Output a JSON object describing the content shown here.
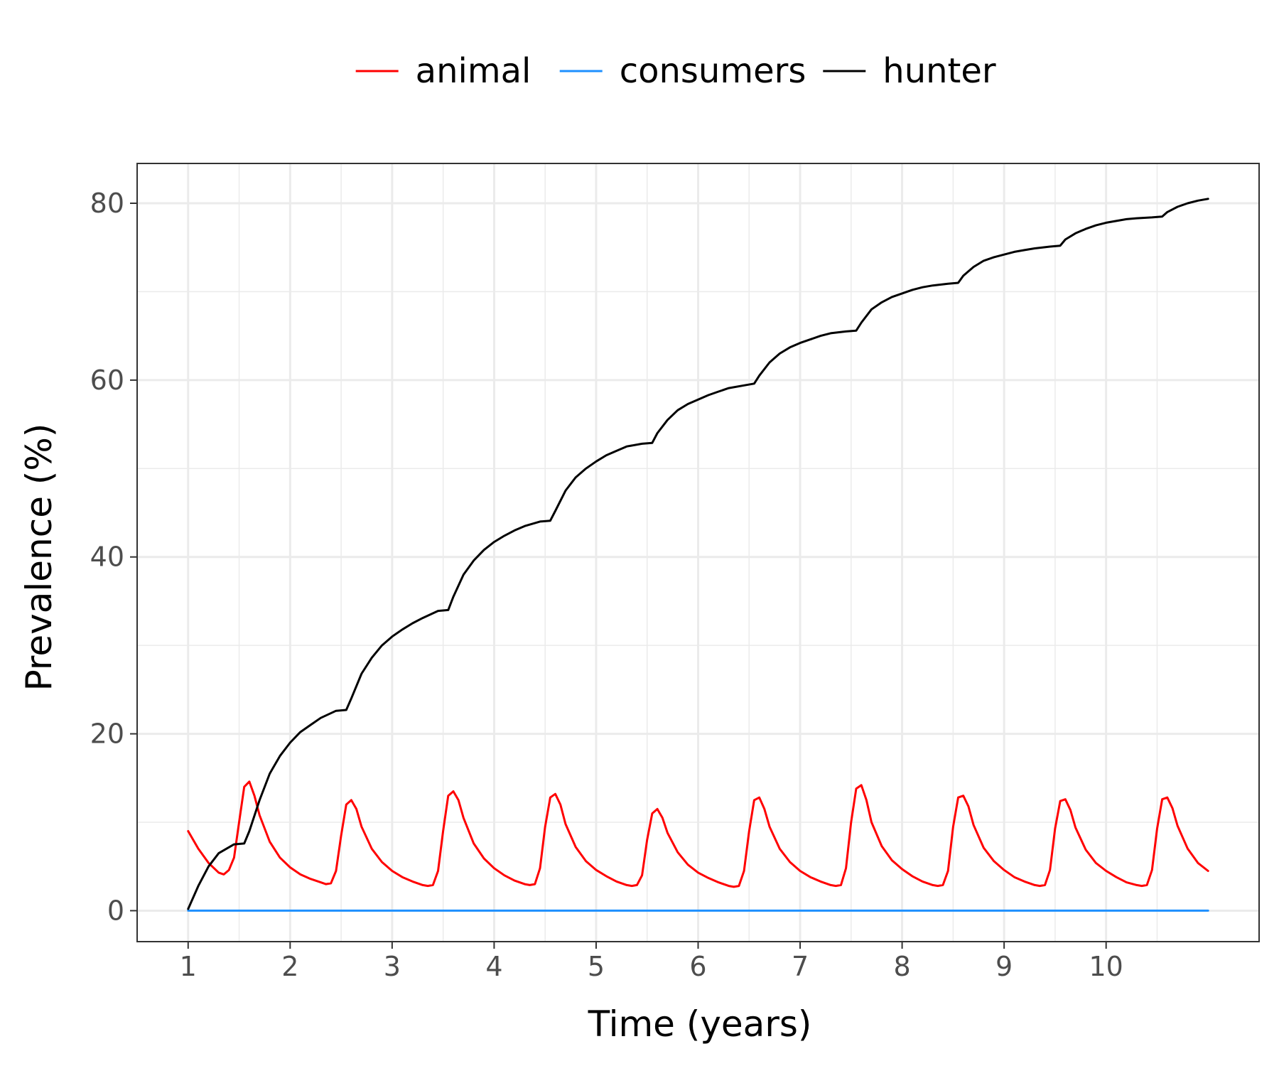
{
  "chart_data": {
    "type": "line",
    "title": "",
    "xlabel": "Time (years)",
    "ylabel": "Prevalence (%)",
    "xlim": [
      0.5,
      11.5
    ],
    "ylim": [
      -3.5,
      84.5
    ],
    "x_ticks": [
      1,
      2,
      3,
      4,
      5,
      6,
      7,
      8,
      9,
      10
    ],
    "x_tick_labels": [
      "1",
      "2",
      "3",
      "4",
      "5",
      "6",
      "7",
      "8",
      "9",
      "10"
    ],
    "y_ticks": [
      0,
      20,
      40,
      60,
      80
    ],
    "y_tick_labels": [
      "0",
      "20",
      "40",
      "60",
      "80"
    ],
    "grid": true,
    "legend_position": "top",
    "series": [
      {
        "name": "animal",
        "color": "#ff0000",
        "x": [
          1.0,
          1.1,
          1.2,
          1.3,
          1.35,
          1.4,
          1.45,
          1.5,
          1.55,
          1.6,
          1.65,
          1.7,
          1.8,
          1.9,
          2.0,
          2.1,
          2.2,
          2.3,
          2.35,
          2.4,
          2.45,
          2.5,
          2.55,
          2.6,
          2.65,
          2.7,
          2.8,
          2.9,
          3.0,
          3.1,
          3.2,
          3.3,
          3.35,
          3.4,
          3.45,
          3.5,
          3.55,
          3.6,
          3.65,
          3.7,
          3.8,
          3.9,
          4.0,
          4.1,
          4.2,
          4.3,
          4.35,
          4.4,
          4.45,
          4.5,
          4.55,
          4.6,
          4.65,
          4.7,
          4.8,
          4.9,
          5.0,
          5.1,
          5.2,
          5.3,
          5.35,
          5.4,
          5.45,
          5.5,
          5.55,
          5.6,
          5.65,
          5.7,
          5.8,
          5.9,
          6.0,
          6.1,
          6.2,
          6.3,
          6.35,
          6.4,
          6.45,
          6.5,
          6.55,
          6.6,
          6.65,
          6.7,
          6.8,
          6.9,
          7.0,
          7.1,
          7.2,
          7.3,
          7.35,
          7.4,
          7.45,
          7.5,
          7.55,
          7.6,
          7.65,
          7.7,
          7.8,
          7.9,
          8.0,
          8.1,
          8.2,
          8.3,
          8.35,
          8.4,
          8.45,
          8.5,
          8.55,
          8.6,
          8.65,
          8.7,
          8.8,
          8.9,
          9.0,
          9.1,
          9.2,
          9.3,
          9.35,
          9.4,
          9.45,
          9.5,
          9.55,
          9.6,
          9.65,
          9.7,
          9.8,
          9.9,
          10.0,
          10.1,
          10.2,
          10.3,
          10.35,
          10.4,
          10.45,
          10.5,
          10.55,
          10.6,
          10.65,
          10.7,
          10.8,
          10.9,
          11.0
        ],
        "values": [
          9.0,
          7.0,
          5.4,
          4.3,
          4.1,
          4.6,
          6.0,
          10.0,
          14.0,
          14.6,
          13.0,
          10.8,
          7.8,
          6.0,
          4.9,
          4.1,
          3.6,
          3.2,
          3.0,
          3.1,
          4.5,
          8.5,
          12.0,
          12.5,
          11.5,
          9.5,
          7.0,
          5.5,
          4.5,
          3.8,
          3.3,
          2.9,
          2.8,
          2.9,
          4.5,
          9.0,
          13.0,
          13.5,
          12.5,
          10.5,
          7.6,
          5.9,
          4.8,
          4.0,
          3.4,
          3.0,
          2.9,
          3.0,
          4.8,
          9.5,
          12.8,
          13.2,
          12.0,
          9.8,
          7.2,
          5.6,
          4.6,
          3.9,
          3.3,
          2.9,
          2.8,
          2.9,
          4.0,
          8.0,
          11.0,
          11.5,
          10.5,
          8.8,
          6.6,
          5.2,
          4.3,
          3.7,
          3.2,
          2.8,
          2.7,
          2.8,
          4.5,
          9.0,
          12.5,
          12.8,
          11.5,
          9.5,
          7.0,
          5.5,
          4.5,
          3.8,
          3.3,
          2.9,
          2.8,
          2.9,
          4.8,
          10.0,
          13.8,
          14.2,
          12.5,
          10.0,
          7.3,
          5.7,
          4.7,
          3.9,
          3.3,
          2.9,
          2.8,
          2.9,
          4.5,
          9.5,
          12.8,
          13.0,
          11.8,
          9.7,
          7.1,
          5.6,
          4.6,
          3.8,
          3.3,
          2.9,
          2.8,
          2.9,
          4.6,
          9.3,
          12.4,
          12.6,
          11.4,
          9.4,
          6.9,
          5.4,
          4.5,
          3.8,
          3.2,
          2.9,
          2.8,
          2.9,
          4.6,
          9.3,
          12.6,
          12.8,
          11.6,
          9.6,
          7.0,
          5.4,
          4.5
        ]
      },
      {
        "name": "consumers",
        "color": "#1e90ff",
        "x": [
          1.0,
          11.0
        ],
        "values": [
          0.0,
          0.0
        ]
      },
      {
        "name": "hunter",
        "color": "#000000",
        "x": [
          1.0,
          1.1,
          1.2,
          1.3,
          1.45,
          1.55,
          1.6,
          1.7,
          1.8,
          1.9,
          2.0,
          2.1,
          2.2,
          2.3,
          2.45,
          2.55,
          2.6,
          2.7,
          2.8,
          2.9,
          3.0,
          3.1,
          3.2,
          3.3,
          3.45,
          3.55,
          3.6,
          3.7,
          3.8,
          3.9,
          4.0,
          4.1,
          4.2,
          4.3,
          4.45,
          4.55,
          4.6,
          4.7,
          4.8,
          4.9,
          5.0,
          5.1,
          5.2,
          5.3,
          5.45,
          5.55,
          5.6,
          5.7,
          5.8,
          5.9,
          6.0,
          6.1,
          6.2,
          6.3,
          6.45,
          6.55,
          6.6,
          6.7,
          6.8,
          6.9,
          7.0,
          7.1,
          7.2,
          7.3,
          7.45,
          7.55,
          7.6,
          7.7,
          7.8,
          7.9,
          8.0,
          8.1,
          8.2,
          8.3,
          8.45,
          8.55,
          8.6,
          8.7,
          8.8,
          8.9,
          9.0,
          9.1,
          9.2,
          9.3,
          9.45,
          9.55,
          9.6,
          9.7,
          9.8,
          9.9,
          10.0,
          10.1,
          10.2,
          10.3,
          10.45,
          10.55,
          10.6,
          10.7,
          10.8,
          10.9,
          11.0
        ],
        "values": [
          0.2,
          2.8,
          5.0,
          6.5,
          7.5,
          7.6,
          9.0,
          12.5,
          15.5,
          17.5,
          19.0,
          20.2,
          21.0,
          21.8,
          22.6,
          22.7,
          24.0,
          26.8,
          28.6,
          30.0,
          31.0,
          31.8,
          32.5,
          33.1,
          33.9,
          34.0,
          35.5,
          38.0,
          39.6,
          40.8,
          41.7,
          42.4,
          43.0,
          43.5,
          44.0,
          44.1,
          45.2,
          47.5,
          49.0,
          50.0,
          50.8,
          51.5,
          52.0,
          52.5,
          52.8,
          52.9,
          54.0,
          55.5,
          56.6,
          57.3,
          57.8,
          58.3,
          58.7,
          59.1,
          59.4,
          59.6,
          60.5,
          62.0,
          63.0,
          63.7,
          64.2,
          64.6,
          65.0,
          65.3,
          65.5,
          65.6,
          66.5,
          68.0,
          68.8,
          69.4,
          69.8,
          70.2,
          70.5,
          70.7,
          70.9,
          71.0,
          71.8,
          72.8,
          73.5,
          73.9,
          74.2,
          74.5,
          74.7,
          74.9,
          75.1,
          75.2,
          75.9,
          76.6,
          77.1,
          77.5,
          77.8,
          78.0,
          78.2,
          78.3,
          78.4,
          78.5,
          79.0,
          79.6,
          80.0,
          80.3,
          80.5
        ]
      }
    ]
  }
}
